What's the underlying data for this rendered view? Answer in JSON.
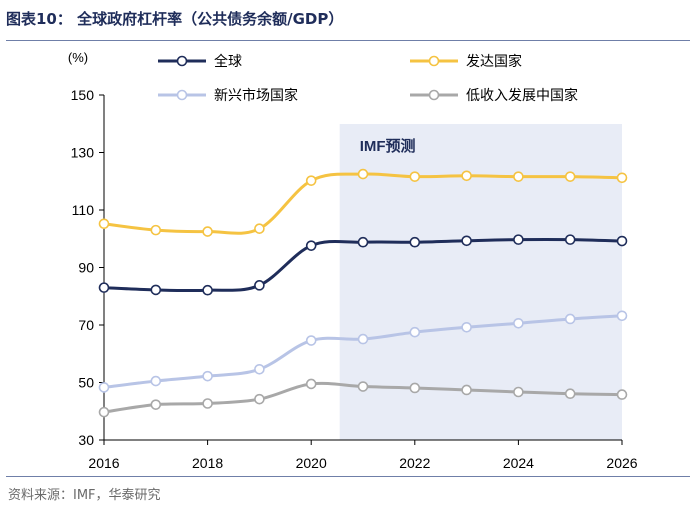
{
  "header": {
    "title": "图表10：    全球政府杠杆率（公共债务余额/GDP）"
  },
  "footer": {
    "source": "资料来源：IMF，华泰研究"
  },
  "chart_data": {
    "type": "line",
    "title": "全球政府杠杆率（公共债务余额/GDP）",
    "ylabel": "(%)",
    "xlabel": "",
    "ylim": [
      30,
      150
    ],
    "yticks": [
      30,
      50,
      70,
      90,
      110,
      130,
      150
    ],
    "xlim": [
      2016,
      2026
    ],
    "xticks": [
      2016,
      2018,
      2020,
      2022,
      2024,
      2026
    ],
    "grid": false,
    "legend_position": "top",
    "forecast": {
      "label": "IMF预测",
      "from": 2020.55,
      "to": 2026,
      "color": "#e8ecf6"
    },
    "x": [
      2016,
      2017,
      2018,
      2019,
      2020,
      2021,
      2022,
      2023,
      2024,
      2025,
      2026
    ],
    "series": [
      {
        "name": "全球",
        "color": "#1f2d5a",
        "values": [
          83.0,
          82.2,
          82.1,
          83.8,
          97.6,
          98.8,
          98.8,
          99.3,
          99.7,
          99.7,
          99.2
        ]
      },
      {
        "name": "发达国家",
        "color": "#f5c342",
        "values": [
          105.2,
          103.0,
          102.5,
          103.5,
          120.2,
          122.5,
          121.6,
          121.9,
          121.6,
          121.6,
          121.2
        ]
      },
      {
        "name": "新兴市场国家",
        "color": "#b8c4e6",
        "values": [
          48.3,
          50.5,
          52.2,
          54.6,
          64.6,
          65.1,
          67.5,
          69.2,
          70.6,
          72.1,
          73.2
        ]
      },
      {
        "name": "低收入发展中国家",
        "color": "#a8a8a8",
        "values": [
          39.7,
          42.3,
          42.7,
          44.2,
          49.5,
          48.6,
          48.1,
          47.4,
          46.7,
          46.1,
          45.8
        ]
      }
    ]
  }
}
